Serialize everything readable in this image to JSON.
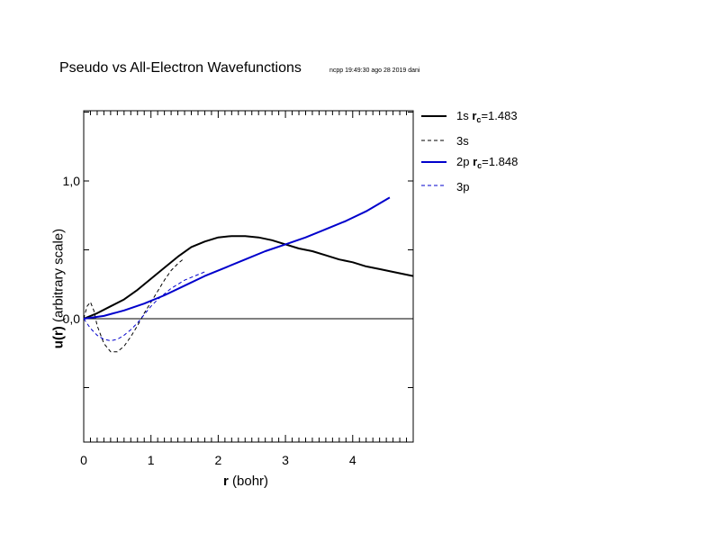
{
  "title": "Pseudo vs All-Electron Wavefunctions",
  "stamp": "ncpp 19:49:30 ago 28 2019 dani",
  "chart_data": {
    "type": "line",
    "xlabel_bold": "r",
    "xlabel_rest": "(bohr)",
    "ylabel_bold": "u(r)",
    "ylabel_rest": "(arbitrary scale)",
    "xlim": [
      0,
      4.9
    ],
    "ylim": [
      -0.9,
      1.52
    ],
    "x_ticks": [
      0,
      1,
      2,
      3,
      4
    ],
    "x_tick_labels": [
      "0",
      "1",
      "2",
      "3",
      "4"
    ],
    "y_ticks": [
      0,
      1
    ],
    "y_tick_labels": [
      "0,0",
      "1,0"
    ],
    "series": [
      {
        "name": "1s",
        "rc": "1.483",
        "color": "#000000",
        "style": "solid",
        "width": 2,
        "x": [
          0,
          0.2,
          0.4,
          0.6,
          0.8,
          1.0,
          1.2,
          1.4,
          1.6,
          1.8,
          2.0,
          2.2,
          2.4,
          2.6,
          2.8,
          3.0,
          3.2,
          3.4,
          3.6,
          3.8,
          4.0,
          4.2,
          4.4,
          4.6,
          4.9
        ],
        "y": [
          0,
          0.04,
          0.09,
          0.14,
          0.21,
          0.29,
          0.37,
          0.45,
          0.52,
          0.56,
          0.59,
          0.6,
          0.6,
          0.59,
          0.57,
          0.54,
          0.51,
          0.49,
          0.46,
          0.43,
          0.41,
          0.38,
          0.36,
          0.34,
          0.31
        ]
      },
      {
        "name": "3s",
        "rc": "",
        "color": "#000000",
        "style": "dashed",
        "width": 1,
        "x": [
          0,
          0.05,
          0.1,
          0.15,
          0.2,
          0.3,
          0.4,
          0.5,
          0.6,
          0.7,
          0.8,
          0.9,
          1.0,
          1.1,
          1.2,
          1.3,
          1.4,
          1.5
        ],
        "y": [
          0,
          0.09,
          0.12,
          0.06,
          -0.05,
          -0.18,
          -0.24,
          -0.24,
          -0.2,
          -0.13,
          -0.05,
          0.04,
          0.12,
          0.2,
          0.28,
          0.35,
          0.4,
          0.44
        ]
      },
      {
        "name": "2p",
        "rc": "1.848",
        "color": "#0000cc",
        "style": "solid",
        "width": 2,
        "x": [
          0,
          0.3,
          0.6,
          0.9,
          1.2,
          1.5,
          1.8,
          2.1,
          2.4,
          2.7,
          3.0,
          3.3,
          3.6,
          3.9,
          4.2,
          4.55
        ],
        "y": [
          0,
          0.02,
          0.06,
          0.11,
          0.17,
          0.24,
          0.31,
          0.37,
          0.43,
          0.49,
          0.54,
          0.59,
          0.65,
          0.71,
          0.78,
          0.88
        ]
      },
      {
        "name": "3p",
        "rc": "",
        "color": "#0000cc",
        "style": "dashed",
        "width": 1,
        "x": [
          0,
          0.1,
          0.2,
          0.3,
          0.4,
          0.5,
          0.6,
          0.7,
          0.8,
          0.9,
          1.0,
          1.1,
          1.2,
          1.3,
          1.4,
          1.5,
          1.6,
          1.8
        ],
        "y": [
          0,
          -0.07,
          -0.12,
          -0.15,
          -0.16,
          -0.15,
          -0.12,
          -0.08,
          -0.03,
          0.03,
          0.09,
          0.14,
          0.18,
          0.22,
          0.25,
          0.28,
          0.3,
          0.34
        ]
      }
    ]
  }
}
